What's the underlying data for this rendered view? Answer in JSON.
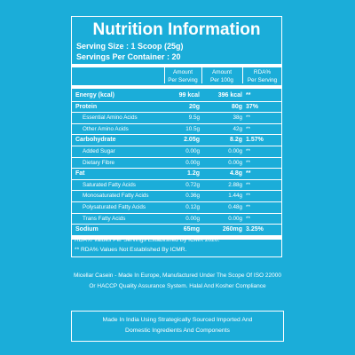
{
  "title": "Nutrition Information",
  "serving_size": "Serving Size : 1 Scoop (25g)",
  "servings_per_container": "Servings Per Container : 20",
  "columns": [
    {
      "line1": "Amount",
      "line2": "Per Serving"
    },
    {
      "line1": "Amount",
      "line2": "Per 100g"
    },
    {
      "line1": "RDA%",
      "line2": "Per Serving"
    }
  ],
  "rows": [
    {
      "label": "Energy (kcal)",
      "per_serving": "99 kcal",
      "per_100g": "396 kcal",
      "rda": "**",
      "type": "main"
    },
    {
      "label": "Protein",
      "per_serving": "20g",
      "per_100g": "80g",
      "rda": "37%",
      "type": "main"
    },
    {
      "label": "Essential Amino Acids",
      "per_serving": "9.5g",
      "per_100g": "38g",
      "rda": "**",
      "type": "sub"
    },
    {
      "label": "Other Amino Acids",
      "per_serving": "10.5g",
      "per_100g": "42g",
      "rda": "**",
      "type": "sub"
    },
    {
      "label": "Carbohydrate",
      "per_serving": "2.05g",
      "per_100g": "8.2g",
      "rda": "1.57%",
      "type": "main"
    },
    {
      "label": "Added Sugar",
      "per_serving": "0.00g",
      "per_100g": "0.00g",
      "rda": "**",
      "type": "sub"
    },
    {
      "label": "Dietary Fibre",
      "per_serving": "0.00g",
      "per_100g": "0.00g",
      "rda": "**",
      "type": "sub"
    },
    {
      "label": "Fat",
      "per_serving": "1.2g",
      "per_100g": "4.8g",
      "rda": "**",
      "type": "main"
    },
    {
      "label": "Saturated Fatty Acids",
      "per_serving": "0.72g",
      "per_100g": "2.88g",
      "rda": "**",
      "type": "sub"
    },
    {
      "label": "Monosaturated Fatty Acids",
      "per_serving": "0.36g",
      "per_100g": "1.44g",
      "rda": "**",
      "type": "sub"
    },
    {
      "label": "Polysaturated Fatty Acids",
      "per_serving": "0.12g",
      "per_100g": "0.48g",
      "rda": "**",
      "type": "sub"
    },
    {
      "label": "Trans Fatty Acids",
      "per_serving": "0.00g",
      "per_100g": "0.00g",
      "rda": "**",
      "type": "sub"
    },
    {
      "label": "Sodium",
      "per_serving": "65mg",
      "per_100g": "260mg",
      "rda": "3.25%",
      "type": "main"
    }
  ],
  "footnotes": [
    "RDA% Values Per Servings Established By ICMR 2020.",
    "** RDA% Values Not Established By ICMR."
  ],
  "description": [
    "Micellar Casein - Made In Europe, Manufactured Under The Scope Of ISO 22000",
    "Or HACCP Quality Assurance System. Halal And Kosher Compliance"
  ],
  "made_in": [
    "Made In India Using Strategically Sourced Imported And",
    "Domestic Ingredients And Components"
  ],
  "colors": {
    "background": "#1badd9",
    "foreground": "#ffffff"
  }
}
